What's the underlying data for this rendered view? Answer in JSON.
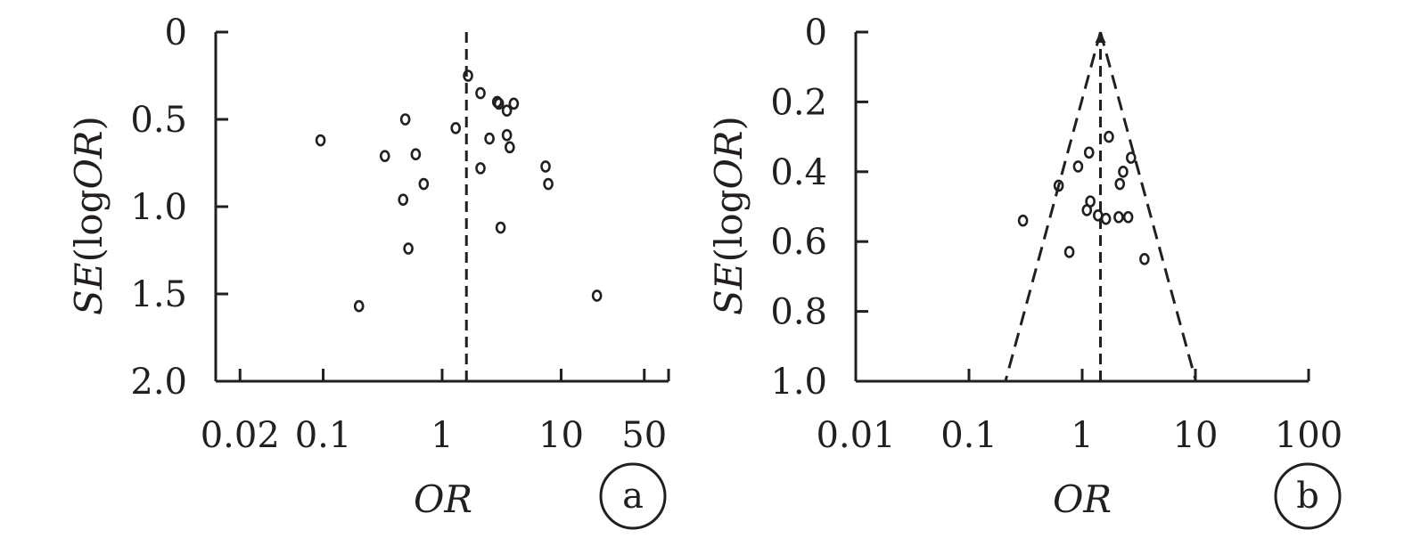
{
  "chart_data": [
    {
      "type": "scatter",
      "panel_label": "a",
      "xlabel": "OR",
      "ylabel": {
        "italic": "SE",
        "plain": "(log",
        "italic2": "OR",
        "close": ")"
      },
      "x_scale": "log",
      "xlim": [
        0.0125,
        80
      ],
      "x_ticks": [
        0.02,
        0.1,
        1,
        10,
        50
      ],
      "x_tick_labels": [
        "0.02",
        "0.1",
        "1",
        "10",
        "50"
      ],
      "ylim": [
        0,
        2.0
      ],
      "y_inverted": true,
      "y_ticks": [
        0,
        0.5,
        1.0,
        1.5,
        2.0
      ],
      "y_tick_labels": [
        "0",
        "0.5",
        "1.0",
        "1.5",
        "2.0"
      ],
      "reference_line_x": 1.6,
      "points": [
        {
          "x": 0.095,
          "y": 0.62
        },
        {
          "x": 0.2,
          "y": 1.57
        },
        {
          "x": 0.33,
          "y": 0.71
        },
        {
          "x": 0.47,
          "y": 0.96
        },
        {
          "x": 0.49,
          "y": 0.5
        },
        {
          "x": 0.52,
          "y": 1.24
        },
        {
          "x": 0.6,
          "y": 0.7
        },
        {
          "x": 0.7,
          "y": 0.87
        },
        {
          "x": 1.3,
          "y": 0.55
        },
        {
          "x": 1.65,
          "y": 0.25
        },
        {
          "x": 2.1,
          "y": 0.35
        },
        {
          "x": 2.1,
          "y": 0.78
        },
        {
          "x": 2.5,
          "y": 0.61
        },
        {
          "x": 2.9,
          "y": 0.4
        },
        {
          "x": 3.0,
          "y": 0.41
        },
        {
          "x": 3.1,
          "y": 1.12
        },
        {
          "x": 3.5,
          "y": 0.45
        },
        {
          "x": 3.5,
          "y": 0.59
        },
        {
          "x": 3.7,
          "y": 0.66
        },
        {
          "x": 4.0,
          "y": 0.41
        },
        {
          "x": 7.4,
          "y": 0.77
        },
        {
          "x": 7.8,
          "y": 0.87
        },
        {
          "x": 20.0,
          "y": 1.51
        }
      ]
    },
    {
      "type": "scatter",
      "panel_label": "b",
      "xlabel": "OR",
      "ylabel": {
        "italic": "SE",
        "plain": "(log",
        "italic2": "OR",
        "close": ")"
      },
      "x_scale": "log",
      "xlim": [
        0.01,
        100
      ],
      "x_ticks": [
        0.01,
        0.1,
        1,
        10,
        100
      ],
      "x_tick_labels": [
        "0.01",
        "0.1",
        "1",
        "10",
        "100"
      ],
      "ylim": [
        0,
        1.0
      ],
      "y_inverted": true,
      "y_ticks": [
        0,
        0.2,
        0.4,
        0.6,
        0.8,
        1.0
      ],
      "y_tick_labels": [
        "0",
        "0.2",
        "0.4",
        "0.6",
        "0.8",
        "1.0"
      ],
      "reference_line_x": 1.45,
      "funnel": {
        "apex_x": 1.45,
        "base_left_x": 0.21,
        "base_right_x": 10.1,
        "base_y": 1.0
      },
      "points": [
        {
          "x": 0.3,
          "y": 0.54
        },
        {
          "x": 0.62,
          "y": 0.44
        },
        {
          "x": 0.77,
          "y": 0.63
        },
        {
          "x": 0.92,
          "y": 0.385
        },
        {
          "x": 1.1,
          "y": 0.51
        },
        {
          "x": 1.15,
          "y": 0.345
        },
        {
          "x": 1.18,
          "y": 0.485
        },
        {
          "x": 1.38,
          "y": 0.525
        },
        {
          "x": 1.62,
          "y": 0.535
        },
        {
          "x": 1.72,
          "y": 0.3
        },
        {
          "x": 2.1,
          "y": 0.53
        },
        {
          "x": 2.15,
          "y": 0.435
        },
        {
          "x": 2.3,
          "y": 0.4
        },
        {
          "x": 2.55,
          "y": 0.53
        },
        {
          "x": 2.7,
          "y": 0.36
        },
        {
          "x": 3.55,
          "y": 0.65
        }
      ]
    }
  ]
}
